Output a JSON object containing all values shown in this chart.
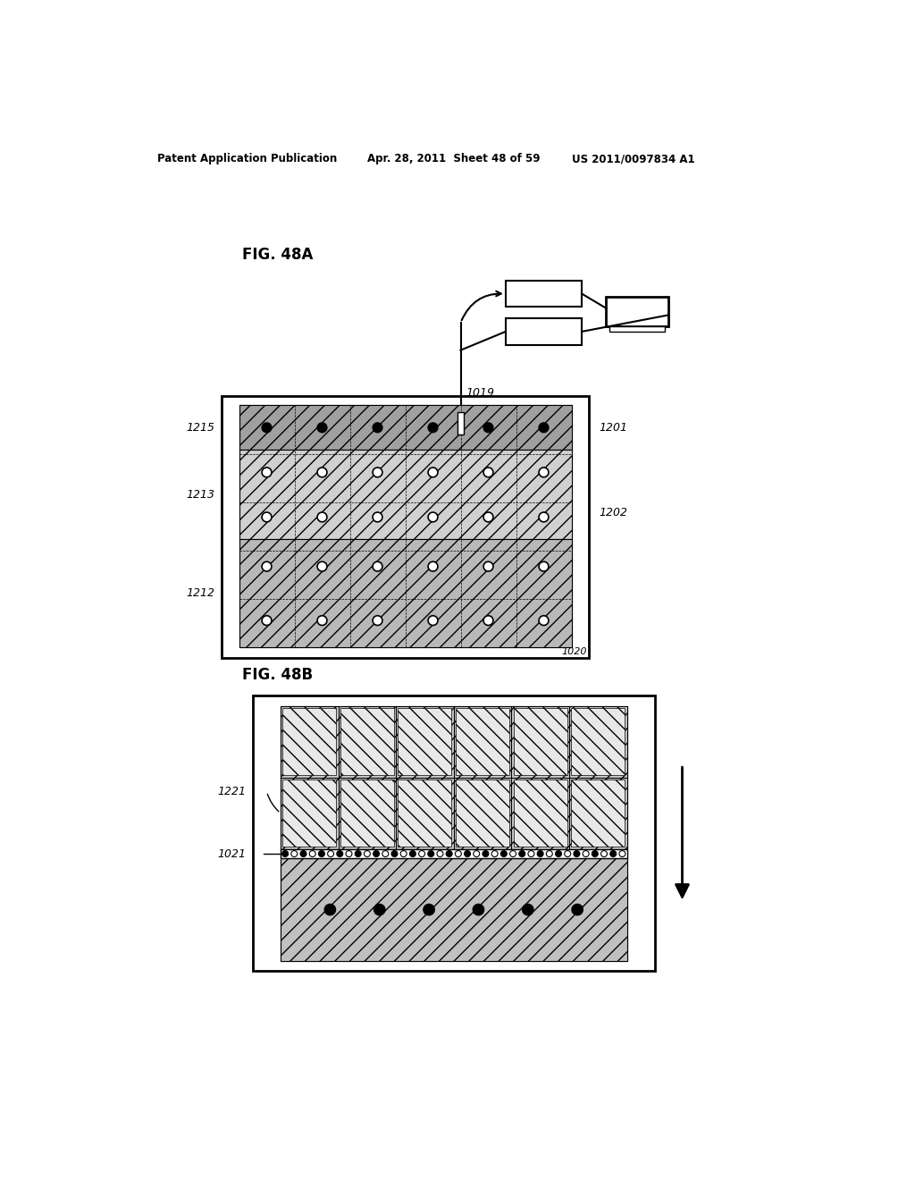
{
  "header_left": "Patent Application Publication",
  "header_mid": "Apr. 28, 2011  Sheet 48 of 59",
  "header_right": "US 2011/0097834 A1",
  "fig48a_label": "FIG. 48A",
  "fig48b_label": "FIG. 48B",
  "bg_color": "#ffffff",
  "fg_color": "#000000"
}
